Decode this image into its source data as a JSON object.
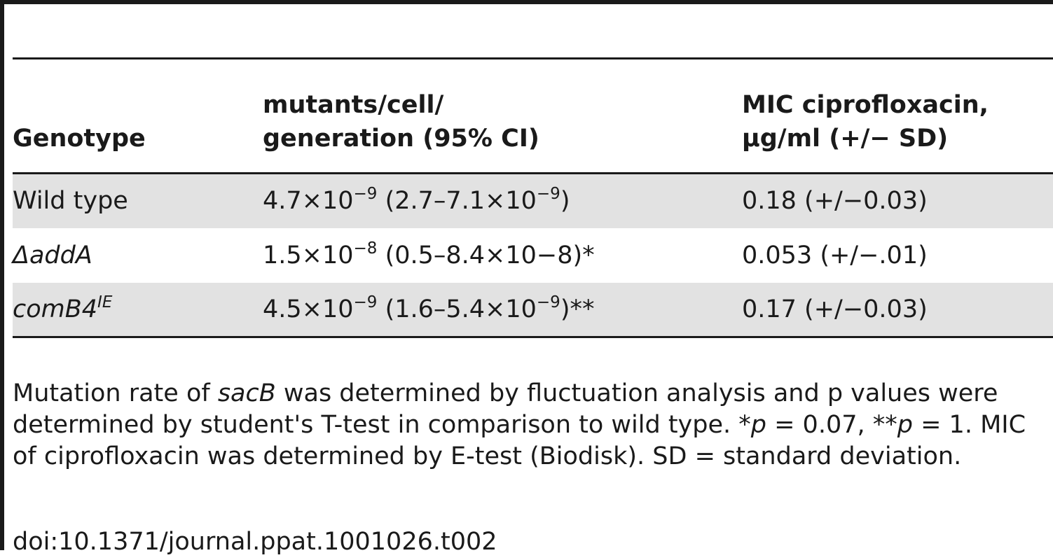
{
  "table": {
    "headers": [
      {
        "line1": "",
        "line2": "Genotype"
      },
      {
        "line1": "mutants/cell/",
        "line2": "generation (95% CI)"
      },
      {
        "line1": "MIC ciprofloxacin,",
        "line2": "μg/ml (+/− SD)"
      }
    ],
    "rows": [
      {
        "genotype": {
          "base": "Wild type",
          "sup": "",
          "italic": false
        },
        "rate": {
          "a": "4.7×10",
          "a_exp": "−9",
          "b": " (2.7–7.1×10",
          "b_exp": "−9",
          "c": ")"
        },
        "mic": "0.18 (+/−0.03)"
      },
      {
        "genotype": {
          "base": "ΔaddA",
          "sup": "",
          "italic": true
        },
        "rate": {
          "a": "1.5×10",
          "a_exp": "−8",
          "b": " (0.5–8.4×10−8)*",
          "b_exp": "",
          "c": ""
        },
        "mic": "0.053 (+/−.01)"
      },
      {
        "genotype": {
          "base": "comB4",
          "sup": "IE",
          "italic": true
        },
        "rate": {
          "a": "4.5×10",
          "a_exp": "−9",
          "b": " (1.6–5.4×10",
          "b_exp": "−9",
          "c": ")**"
        },
        "mic": "0.17 (+/−0.03)"
      }
    ]
  },
  "caption": {
    "p1": "Mutation rate of ",
    "p1_italic": "sacB",
    "p2": " was determined by fluctuation analysis and p values were determined by student's T-test in comparison to wild type. *",
    "p2_italic": "p",
    "p3": " = 0.07, **",
    "p3_italic": "p",
    "p4": " = 1. MIC of ciprofloxacin was determined by E-test (Biodisk). SD = standard deviation."
  },
  "doi": "doi:10.1371/journal.ppat.1001026.t002"
}
